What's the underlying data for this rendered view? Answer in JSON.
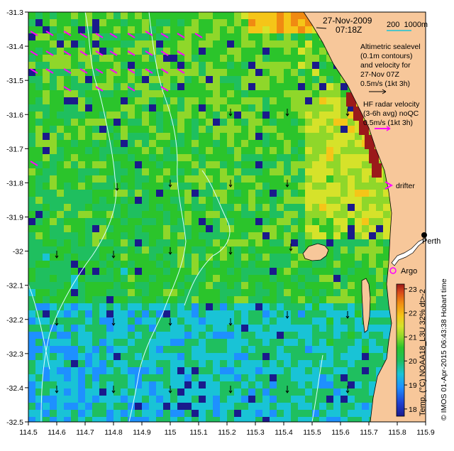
{
  "map": {
    "lon_ticks": [
      "114.5",
      "114.6",
      "114.7",
      "114.8",
      "114.9",
      "115",
      "115.1",
      "115.2",
      "115.3",
      "115.4",
      "115.5",
      "115.6",
      "115.7",
      "115.8",
      "115.9"
    ],
    "lat_ticks": [
      "-31.3",
      "-31.4",
      "-31.5",
      "-31.6",
      "-31.7",
      "-31.8",
      "-31.9",
      "-32",
      "-32.1",
      "-32.2",
      "-32.3",
      "-32.4",
      "-32.5"
    ],
    "lon_range": [
      114.5,
      115.9
    ],
    "lat_range": [
      -32.5,
      -31.3
    ]
  },
  "header": {
    "date": "27-Nov-2009",
    "time": "07:18Z",
    "scale_label": "200  1000m"
  },
  "legend": {
    "altimetric_lines": [
      "Altimetric sealevel",
      "(0.1m contours)",
      "and velocity for",
      "27-Nov 07Z",
      "0.5m/s (1kt 3h)"
    ],
    "hf_lines": [
      "HF radar velocity",
      "(3-6h avg) noQC",
      "0.5m/s (1kt 3h)"
    ],
    "drifter_label": "drifter",
    "argo_label": "Argo",
    "perth_label": "Perth"
  },
  "colorbar": {
    "ticks": [
      "18",
      "19",
      "20",
      "21",
      "22",
      "23"
    ],
    "title": "Temp. (°C) NOAA18_L3U 32% dt>-2",
    "colors": [
      "#1a1a8c",
      "#1f3fd0",
      "#1e90ff",
      "#19c3d6",
      "#1fbf5f",
      "#2bc42b",
      "#8fd72a",
      "#d6e22a",
      "#f5c518",
      "#f08a12",
      "#d8481a",
      "#9b1a1a"
    ]
  },
  "credit": "© IMOS 01-Apr-2015 06:43:38 Hobart time",
  "colors": {
    "land": "#f7c79a",
    "arrow_hf": "#ff00ff",
    "contour": "#d8ffff",
    "missing": "#ffffff"
  }
}
